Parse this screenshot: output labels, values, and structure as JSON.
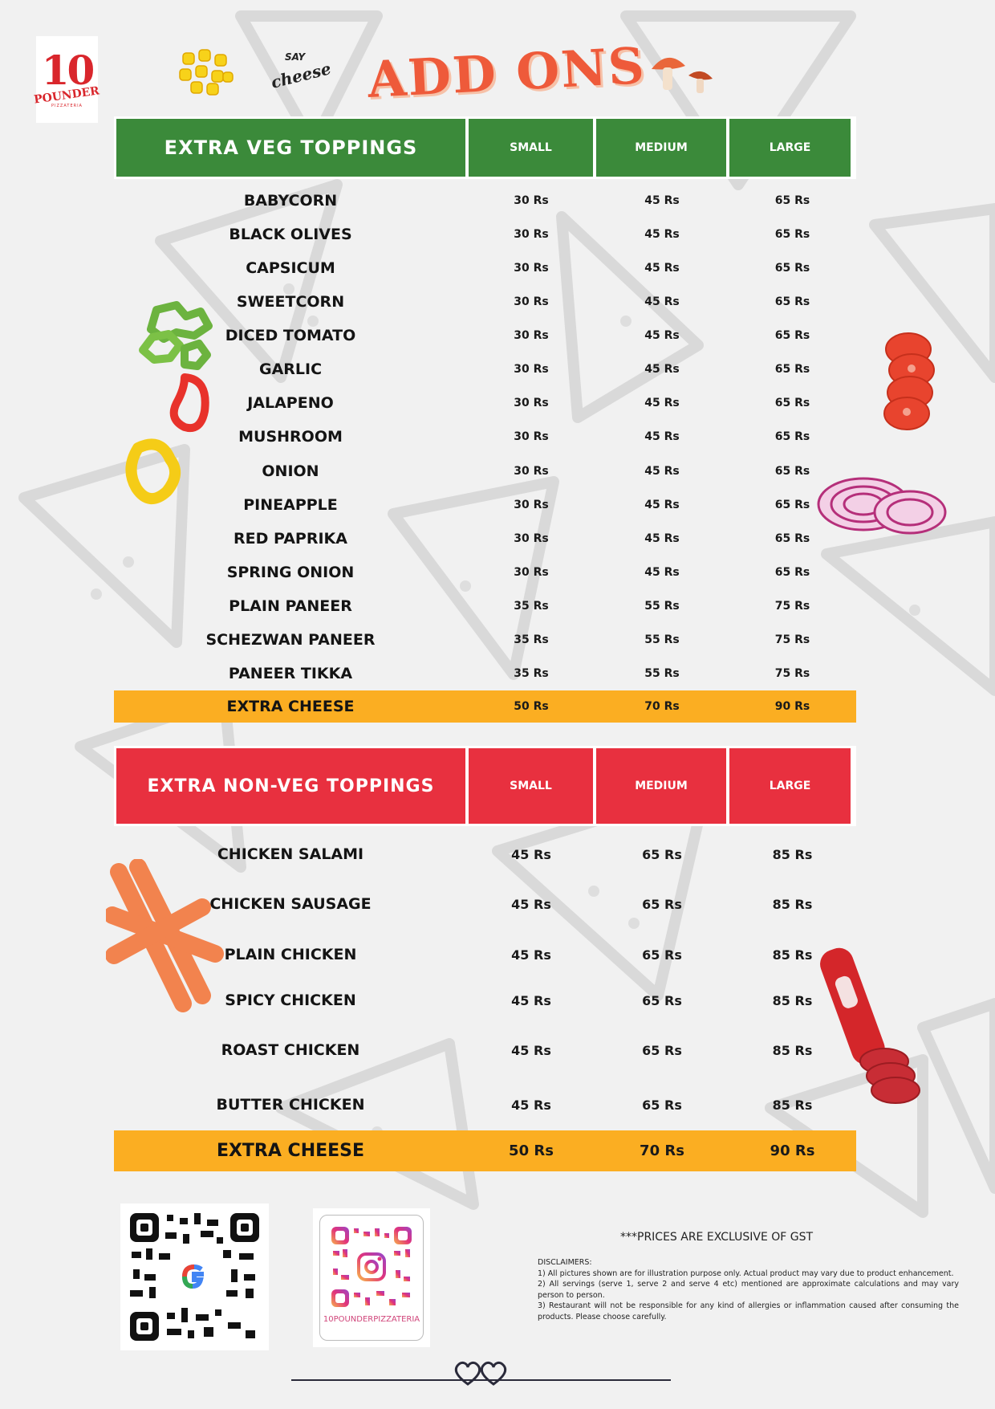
{
  "brand": {
    "number": "10",
    "word": "POUNDER",
    "sub": "PIZZATERIA"
  },
  "say_cheese": {
    "top": "SAY",
    "main": "cheese"
  },
  "title": "ADD ONS",
  "veg": {
    "title": "EXTRA VEG TOPPINGS",
    "headers": [
      "SMALL",
      "MEDIUM",
      "LARGE"
    ],
    "rows": [
      {
        "name": "BABYCORN",
        "small": "30 Rs",
        "medium": "45 Rs",
        "large": "65 Rs"
      },
      {
        "name": "BLACK OLIVES",
        "small": "30 Rs",
        "medium": "45 Rs",
        "large": "65 Rs"
      },
      {
        "name": "CAPSICUM",
        "small": "30 Rs",
        "medium": "45 Rs",
        "large": "65 Rs"
      },
      {
        "name": "SWEETCORN",
        "small": "30 Rs",
        "medium": "45 Rs",
        "large": "65 Rs"
      },
      {
        "name": "DICED TOMATO",
        "small": "30 Rs",
        "medium": "45 Rs",
        "large": "65 Rs"
      },
      {
        "name": "GARLIC",
        "small": "30 Rs",
        "medium": "45 Rs",
        "large": "65 Rs"
      },
      {
        "name": "JALAPENO",
        "small": "30 Rs",
        "medium": "45 Rs",
        "large": "65 Rs"
      },
      {
        "name": "MUSHROOM",
        "small": "30 Rs",
        "medium": "45 Rs",
        "large": "65 Rs"
      },
      {
        "name": "ONION",
        "small": "30 Rs",
        "medium": "45 Rs",
        "large": "65 Rs"
      },
      {
        "name": "PINEAPPLE",
        "small": "30 Rs",
        "medium": "45 Rs",
        "large": "65 Rs"
      },
      {
        "name": "RED PAPRIKA",
        "small": "30 Rs",
        "medium": "45 Rs",
        "large": "65 Rs"
      },
      {
        "name": "SPRING ONION",
        "small": "30 Rs",
        "medium": "45 Rs",
        "large": "65 Rs"
      },
      {
        "name": "PLAIN PANEER",
        "small": "35 Rs",
        "medium": "55 Rs",
        "large": "75 Rs"
      },
      {
        "name": "SCHEZWAN PANEER",
        "small": "35 Rs",
        "medium": "55 Rs",
        "large": "75 Rs"
      },
      {
        "name": "PANEER TIKKA",
        "small": "35 Rs",
        "medium": "55 Rs",
        "large": "75 Rs"
      }
    ],
    "extra": {
      "name": "EXTRA CHEESE",
      "small": "50 Rs",
      "medium": "70 Rs",
      "large": "90 Rs"
    }
  },
  "nonveg": {
    "title": "EXTRA NON-VEG TOPPINGS",
    "headers": [
      "SMALL",
      "MEDIUM",
      "LARGE"
    ],
    "rows": [
      {
        "name": "CHICKEN SALAMI",
        "small": "45 Rs",
        "medium": "65 Rs",
        "large": "85 Rs"
      },
      {
        "name": "CHICKEN SAUSAGE",
        "small": "45 Rs",
        "medium": "65 Rs",
        "large": "85 Rs"
      },
      {
        "name": "PLAIN CHICKEN",
        "small": "45 Rs",
        "medium": "65 Rs",
        "large": "85 Rs"
      },
      {
        "name": "SPICY CHICKEN",
        "small": "45 Rs",
        "medium": "65 Rs",
        "large": "85 Rs"
      },
      {
        "name": "ROAST CHICKEN",
        "small": "45 Rs",
        "medium": "65 Rs",
        "large": "85 Rs"
      },
      {
        "name": "BUTTER CHICKEN",
        "small": "45 Rs",
        "medium": "65 Rs",
        "large": "85 Rs"
      }
    ],
    "extra": {
      "name": "EXTRA CHEESE",
      "small": "50 Rs",
      "medium": "70 Rs",
      "large": "90 Rs"
    }
  },
  "footer": {
    "instagram_handle": "10POUNDERPIZZATERIA",
    "gst_note": "***PRICES ARE EXCLUSIVE OF GST",
    "disclaimer_heading": "DISCLAIMERS:",
    "disclaimers": [
      "1) All pictures shown are for illustration purpose only. Actual product may vary due to product enhancement.",
      "2) All servings (serve 1, serve 2 and serve 4 etc) mentioned are approximate calculations and may vary person to person.",
      "3) Restaurant will not be responsible for any kind of allergies or inflammation caused after consuming the products. Please choose carefully."
    ]
  },
  "colors": {
    "veg_header": "#3b8a3a",
    "nonveg_header": "#e8303f",
    "highlight": "#fbae22",
    "title": "#ee5a3a"
  },
  "icons": [
    "corn-icon",
    "mushroom-icon",
    "capsicum-icon",
    "tomato-icon",
    "onion-icon",
    "sausage-icon",
    "salami-icon",
    "google-qr-icon",
    "instagram-qr-icon",
    "hearts-icon"
  ]
}
